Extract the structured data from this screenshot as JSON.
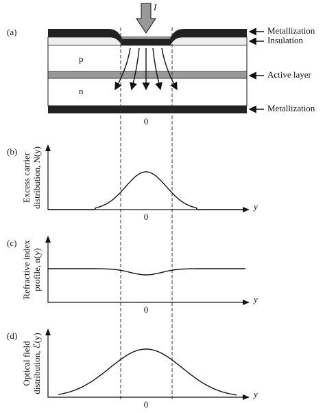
{
  "panel_a": {
    "label": "(a)",
    "current": "I",
    "layer_p": "p",
    "layer_n": "n",
    "callouts": [
      "Metallization",
      "Insulation",
      "Active layer",
      "Metallization"
    ],
    "origin": "0"
  },
  "panel_b": {
    "label": "(b)",
    "ylabel": [
      "Excess carrier",
      "distribution, N(y)"
    ],
    "xlabel": "y",
    "origin": "0"
  },
  "panel_c": {
    "label": "(c)",
    "ylabel": [
      "Refractive index",
      "profile, n(y)"
    ],
    "xlabel": "y",
    "origin": "0"
  },
  "panel_d": {
    "label": "(d)",
    "ylabel": [
      "Optical field",
      "distribution, ℰ(y)"
    ],
    "xlabel": "y",
    "origin": "0"
  }
}
